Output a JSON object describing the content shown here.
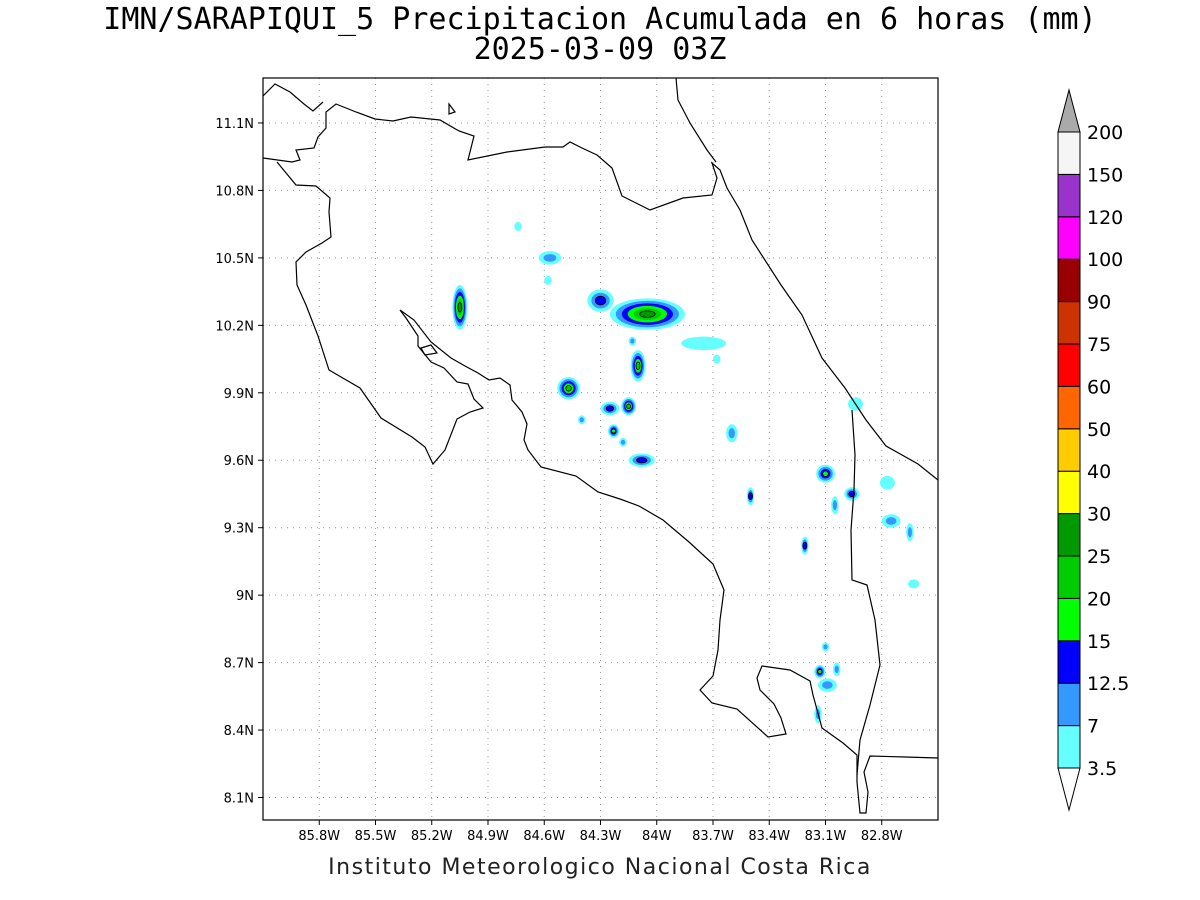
{
  "title_line1": "IMN/SARAPIQUI_5 Precipitacion Acumulada en 6 horas (mm)",
  "title_line2": "2025-03-09 03Z",
  "footer": "Instituto Meteorologico Nacional Costa Rica",
  "map": {
    "lon_range": [
      -86.1,
      -82.5
    ],
    "lat_range": [
      8.0,
      11.3
    ],
    "x_ticks": [
      {
        "v": -85.8,
        "label": "85.8W"
      },
      {
        "v": -85.5,
        "label": "85.5W"
      },
      {
        "v": -85.2,
        "label": "85.2W"
      },
      {
        "v": -84.9,
        "label": "84.9W"
      },
      {
        "v": -84.6,
        "label": "84.6W"
      },
      {
        "v": -84.3,
        "label": "84.3W"
      },
      {
        "v": -84.0,
        "label": "84W"
      },
      {
        "v": -83.7,
        "label": "83.7W"
      },
      {
        "v": -83.4,
        "label": "83.4W"
      },
      {
        "v": -83.1,
        "label": "83.1W"
      },
      {
        "v": -82.8,
        "label": "82.8W"
      }
    ],
    "y_ticks": [
      {
        "v": 11.1,
        "label": "11.1N"
      },
      {
        "v": 10.8,
        "label": "10.8N"
      },
      {
        "v": 10.5,
        "label": "10.5N"
      },
      {
        "v": 10.2,
        "label": "10.2N"
      },
      {
        "v": 9.9,
        "label": "9.9N"
      },
      {
        "v": 9.6,
        "label": "9.6N"
      },
      {
        "v": 9.3,
        "label": "9.3N"
      },
      {
        "v": 9.0,
        "label": "9N"
      },
      {
        "v": 8.7,
        "label": "8.7N"
      },
      {
        "v": 8.4,
        "label": "8.4N"
      },
      {
        "v": 8.1,
        "label": "8.1N"
      }
    ],
    "grid": "dotted",
    "precip_cells": [
      {
        "lon": -84.05,
        "lat": 10.25,
        "max_mm": 25,
        "rx": 0.2,
        "ry": 0.07
      },
      {
        "lon": -84.3,
        "lat": 10.31,
        "max_mm": 12.5,
        "rx": 0.07,
        "ry": 0.05
      },
      {
        "lon": -85.05,
        "lat": 10.28,
        "max_mm": 25,
        "rx": 0.04,
        "ry": 0.1
      },
      {
        "lon": -84.1,
        "lat": 10.02,
        "max_mm": 20,
        "rx": 0.04,
        "ry": 0.07
      },
      {
        "lon": -84.47,
        "lat": 9.92,
        "max_mm": 20,
        "rx": 0.06,
        "ry": 0.05
      },
      {
        "lon": -84.15,
        "lat": 9.84,
        "max_mm": 20,
        "rx": 0.04,
        "ry": 0.04
      },
      {
        "lon": -84.25,
        "lat": 9.83,
        "max_mm": 12.5,
        "rx": 0.05,
        "ry": 0.03
      },
      {
        "lon": -84.23,
        "lat": 9.73,
        "max_mm": 15,
        "rx": 0.03,
        "ry": 0.03
      },
      {
        "lon": -84.08,
        "lat": 9.6,
        "max_mm": 12.5,
        "rx": 0.07,
        "ry": 0.03
      },
      {
        "lon": -84.57,
        "lat": 10.5,
        "max_mm": 7,
        "rx": 0.06,
        "ry": 0.03
      },
      {
        "lon": -83.1,
        "lat": 9.54,
        "max_mm": 15,
        "rx": 0.05,
        "ry": 0.04
      },
      {
        "lon": -83.5,
        "lat": 9.44,
        "max_mm": 12.5,
        "rx": 0.02,
        "ry": 0.04
      },
      {
        "lon": -83.21,
        "lat": 9.22,
        "max_mm": 12.5,
        "rx": 0.02,
        "ry": 0.04
      },
      {
        "lon": -83.13,
        "lat": 8.66,
        "max_mm": 15,
        "rx": 0.03,
        "ry": 0.03
      },
      {
        "lon": -83.09,
        "lat": 8.6,
        "max_mm": 7,
        "rx": 0.05,
        "ry": 0.03
      },
      {
        "lon": -82.96,
        "lat": 9.45,
        "max_mm": 12.5,
        "rx": 0.04,
        "ry": 0.03
      },
      {
        "lon": -83.05,
        "lat": 9.4,
        "max_mm": 7,
        "rx": 0.02,
        "ry": 0.04
      },
      {
        "lon": -82.75,
        "lat": 9.33,
        "max_mm": 7,
        "rx": 0.05,
        "ry": 0.03
      },
      {
        "lon": -82.65,
        "lat": 9.28,
        "max_mm": 7,
        "rx": 0.02,
        "ry": 0.04
      },
      {
        "lon": -83.6,
        "lat": 9.72,
        "max_mm": 7,
        "rx": 0.03,
        "ry": 0.04
      },
      {
        "lon": -83.1,
        "lat": 8.77,
        "max_mm": 7,
        "rx": 0.02,
        "ry": 0.02
      },
      {
        "lon": -83.04,
        "lat": 8.67,
        "max_mm": 7,
        "rx": 0.02,
        "ry": 0.03
      },
      {
        "lon": -83.14,
        "lat": 8.47,
        "max_mm": 7,
        "rx": 0.02,
        "ry": 0.04
      },
      {
        "lon": -83.75,
        "lat": 10.12,
        "max_mm": 3.5,
        "rx": 0.12,
        "ry": 0.03
      },
      {
        "lon": -84.13,
        "lat": 10.13,
        "max_mm": 7,
        "rx": 0.02,
        "ry": 0.02
      },
      {
        "lon": -82.94,
        "lat": 9.85,
        "max_mm": 3.5,
        "rx": 0.04,
        "ry": 0.03
      },
      {
        "lon": -82.77,
        "lat": 9.5,
        "max_mm": 3.5,
        "rx": 0.04,
        "ry": 0.03
      },
      {
        "lon": -82.63,
        "lat": 9.05,
        "max_mm": 3.5,
        "rx": 0.03,
        "ry": 0.02
      },
      {
        "lon": -84.74,
        "lat": 10.64,
        "max_mm": 3.5,
        "rx": 0.02,
        "ry": 0.02
      },
      {
        "lon": -84.58,
        "lat": 10.4,
        "max_mm": 3.5,
        "rx": 0.02,
        "ry": 0.02
      },
      {
        "lon": -84.4,
        "lat": 9.78,
        "max_mm": 7,
        "rx": 0.02,
        "ry": 0.02
      },
      {
        "lon": -83.68,
        "lat": 10.05,
        "max_mm": 3.5,
        "rx": 0.02,
        "ry": 0.02
      },
      {
        "lon": -84.18,
        "lat": 9.68,
        "max_mm": 7,
        "rx": 0.02,
        "ry": 0.02
      }
    ]
  },
  "colorbar": {
    "levels": [
      "3.5",
      "7",
      "12.5",
      "15",
      "20",
      "25",
      "30",
      "40",
      "50",
      "60",
      "75",
      "90",
      "100",
      "120",
      "150",
      "200"
    ],
    "colors": [
      "#66ffff",
      "#3399ff",
      "#0000ff",
      "#00ff00",
      "#00cc00",
      "#009900",
      "#ffff00",
      "#ffcc00",
      "#ff6600",
      "#ff0000",
      "#cc3300",
      "#990000",
      "#ff00ff",
      "#9933cc",
      "#f5f5f5"
    ],
    "top_arrow_color": "#aaaaaa",
    "bottom_arrow_color": "#ffffff"
  }
}
